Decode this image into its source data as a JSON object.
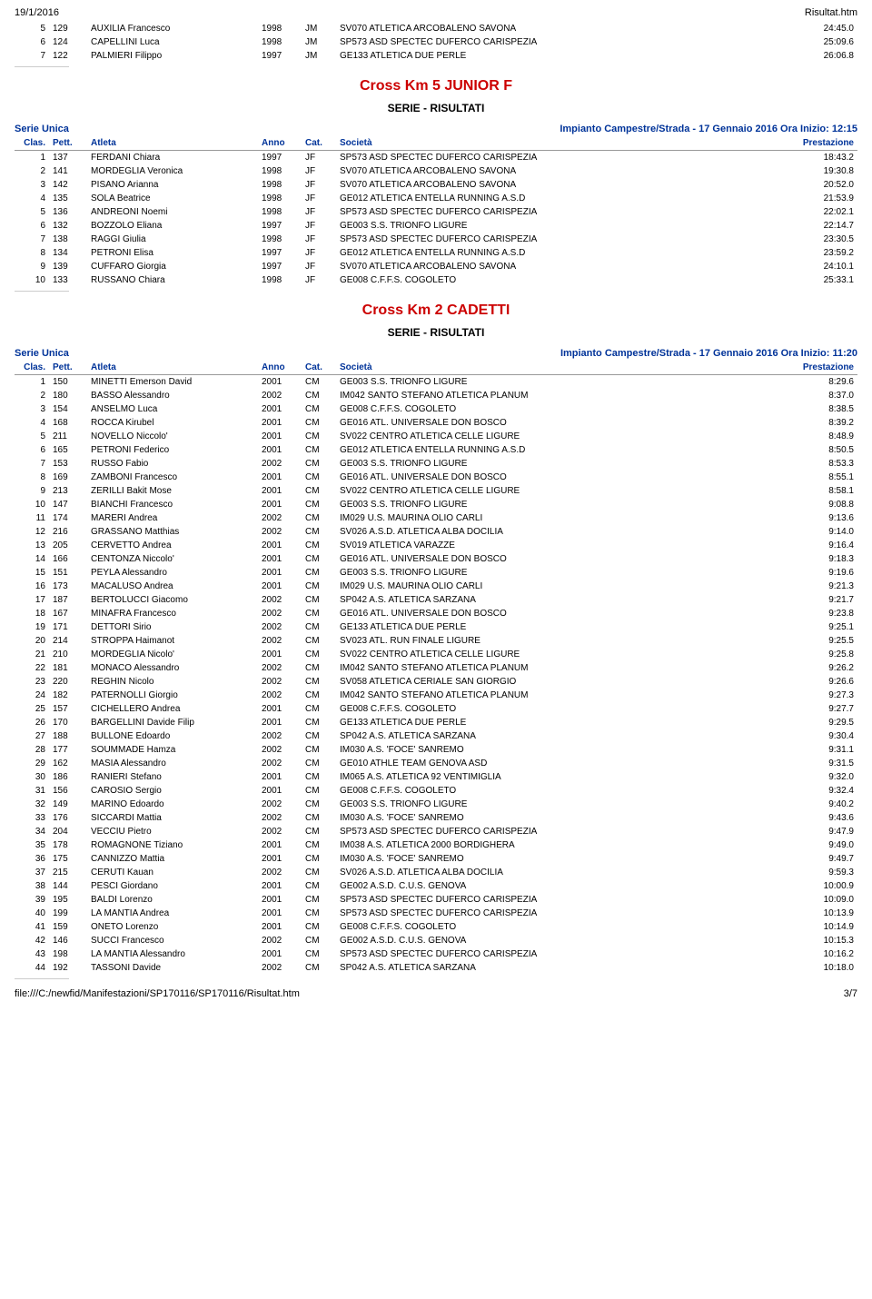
{
  "header": {
    "date": "19/1/2016",
    "file": "Risultat.htm"
  },
  "footer": {
    "path": "file:///C:/newfid/Manifestazioni/SP170116/SP170116/Risultat.htm",
    "page": "3/7"
  },
  "continuation_rows": [
    {
      "clas": "5",
      "pett": "129",
      "atleta": "AUXILIA Francesco",
      "anno": "1998",
      "cat": "JM",
      "soc": "SV070 ATLETICA ARCOBALENO SAVONA",
      "prest": "24:45.0"
    },
    {
      "clas": "6",
      "pett": "124",
      "atleta": "CAPELLINI Luca",
      "anno": "1998",
      "cat": "JM",
      "soc": "SP573 ASD SPECTEC DUFERCO CARISPEZIA",
      "prest": "25:09.6"
    },
    {
      "clas": "7",
      "pett": "122",
      "atleta": "PALMIERI Filippo",
      "anno": "1997",
      "cat": "JM",
      "soc": "GE133 ATLETICA DUE PERLE",
      "prest": "26:06.8"
    }
  ],
  "events": [
    {
      "title": "Cross Km 5 JUNIOR F",
      "serie_label": "Serie Unica",
      "impianto": "Impianto Campestre/Strada - 17 Gennaio 2016 Ora Inizio: 12:15",
      "head": {
        "clas": "Clas.",
        "pett": "Pett.",
        "atleta": "Atleta",
        "anno": "Anno",
        "cat": "Cat.",
        "soc": "Società",
        "prest": "Prestazione"
      },
      "rows": [
        {
          "clas": "1",
          "pett": "137",
          "atleta": "FERDANI Chiara",
          "anno": "1997",
          "cat": "JF",
          "soc": "SP573 ASD SPECTEC DUFERCO CARISPEZIA",
          "prest": "18:43.2"
        },
        {
          "clas": "2",
          "pett": "141",
          "atleta": "MORDEGLIA Veronica",
          "anno": "1998",
          "cat": "JF",
          "soc": "SV070 ATLETICA ARCOBALENO SAVONA",
          "prest": "19:30.8"
        },
        {
          "clas": "3",
          "pett": "142",
          "atleta": "PISANO Arianna",
          "anno": "1998",
          "cat": "JF",
          "soc": "SV070 ATLETICA ARCOBALENO SAVONA",
          "prest": "20:52.0"
        },
        {
          "clas": "4",
          "pett": "135",
          "atleta": "SOLA Beatrice",
          "anno": "1998",
          "cat": "JF",
          "soc": "GE012 ATLETICA ENTELLA RUNNING A.S.D",
          "prest": "21:53.9"
        },
        {
          "clas": "5",
          "pett": "136",
          "atleta": "ANDREONI Noemi",
          "anno": "1998",
          "cat": "JF",
          "soc": "SP573 ASD SPECTEC DUFERCO CARISPEZIA",
          "prest": "22:02.1"
        },
        {
          "clas": "6",
          "pett": "132",
          "atleta": "BOZZOLO Eliana",
          "anno": "1997",
          "cat": "JF",
          "soc": "GE003 S.S. TRIONFO LIGURE",
          "prest": "22:14.7"
        },
        {
          "clas": "7",
          "pett": "138",
          "atleta": "RAGGI Giulia",
          "anno": "1998",
          "cat": "JF",
          "soc": "SP573 ASD SPECTEC DUFERCO CARISPEZIA",
          "prest": "23:30.5"
        },
        {
          "clas": "8",
          "pett": "134",
          "atleta": "PETRONI Elisa",
          "anno": "1997",
          "cat": "JF",
          "soc": "GE012 ATLETICA ENTELLA RUNNING A.S.D",
          "prest": "23:59.2"
        },
        {
          "clas": "9",
          "pett": "139",
          "atleta": "CUFFARO Giorgia",
          "anno": "1997",
          "cat": "JF",
          "soc": "SV070 ATLETICA ARCOBALENO SAVONA",
          "prest": "24:10.1"
        },
        {
          "clas": "10",
          "pett": "133",
          "atleta": "RUSSANO Chiara",
          "anno": "1998",
          "cat": "JF",
          "soc": "GE008 C.F.F.S. COGOLETO",
          "prest": "25:33.1"
        }
      ]
    },
    {
      "title": "Cross Km 2 CADETTI",
      "serie_label": "Serie Unica",
      "impianto": "Impianto Campestre/Strada - 17 Gennaio 2016 Ora Inizio: 11:20",
      "head": {
        "clas": "Clas.",
        "pett": "Pett.",
        "atleta": "Atleta",
        "anno": "Anno",
        "cat": "Cat.",
        "soc": "Società",
        "prest": "Prestazione"
      },
      "rows": [
        {
          "clas": "1",
          "pett": "150",
          "atleta": "MINETTI Emerson David",
          "anno": "2001",
          "cat": "CM",
          "soc": "GE003 S.S. TRIONFO LIGURE",
          "prest": "8:29.6"
        },
        {
          "clas": "2",
          "pett": "180",
          "atleta": "BASSO Alessandro",
          "anno": "2002",
          "cat": "CM",
          "soc": "IM042 SANTO STEFANO ATLETICA PLANUM",
          "prest": "8:37.0"
        },
        {
          "clas": "3",
          "pett": "154",
          "atleta": "ANSELMO Luca",
          "anno": "2001",
          "cat": "CM",
          "soc": "GE008 C.F.F.S. COGOLETO",
          "prest": "8:38.5"
        },
        {
          "clas": "4",
          "pett": "168",
          "atleta": "ROCCA Kirubel",
          "anno": "2001",
          "cat": "CM",
          "soc": "GE016 ATL. UNIVERSALE DON BOSCO",
          "prest": "8:39.2"
        },
        {
          "clas": "5",
          "pett": "211",
          "atleta": "NOVELLO Niccolo'",
          "anno": "2001",
          "cat": "CM",
          "soc": "SV022 CENTRO ATLETICA CELLE LIGURE",
          "prest": "8:48.9"
        },
        {
          "clas": "6",
          "pett": "165",
          "atleta": "PETRONI Federico",
          "anno": "2001",
          "cat": "CM",
          "soc": "GE012 ATLETICA ENTELLA RUNNING A.S.D",
          "prest": "8:50.5"
        },
        {
          "clas": "7",
          "pett": "153",
          "atleta": "RUSSO Fabio",
          "anno": "2002",
          "cat": "CM",
          "soc": "GE003 S.S. TRIONFO LIGURE",
          "prest": "8:53.3"
        },
        {
          "clas": "8",
          "pett": "169",
          "atleta": "ZAMBONI Francesco",
          "anno": "2001",
          "cat": "CM",
          "soc": "GE016 ATL. UNIVERSALE DON BOSCO",
          "prest": "8:55.1"
        },
        {
          "clas": "9",
          "pett": "213",
          "atleta": "ZERILLI Bakit Mose",
          "anno": "2001",
          "cat": "CM",
          "soc": "SV022 CENTRO ATLETICA CELLE LIGURE",
          "prest": "8:58.1"
        },
        {
          "clas": "10",
          "pett": "147",
          "atleta": "BIANCHI Francesco",
          "anno": "2001",
          "cat": "CM",
          "soc": "GE003 S.S. TRIONFO LIGURE",
          "prest": "9:08.8"
        },
        {
          "clas": "11",
          "pett": "174",
          "atleta": "MARERI Andrea",
          "anno": "2002",
          "cat": "CM",
          "soc": "IM029 U.S. MAURINA OLIO CARLI",
          "prest": "9:13.6"
        },
        {
          "clas": "12",
          "pett": "216",
          "atleta": "GRASSANO Matthias",
          "anno": "2002",
          "cat": "CM",
          "soc": "SV026 A.S.D. ATLETICA ALBA DOCILIA",
          "prest": "9:14.0"
        },
        {
          "clas": "13",
          "pett": "205",
          "atleta": "CERVETTO Andrea",
          "anno": "2001",
          "cat": "CM",
          "soc": "SV019 ATLETICA VARAZZE",
          "prest": "9:16.4"
        },
        {
          "clas": "14",
          "pett": "166",
          "atleta": "CENTONZA Niccolo'",
          "anno": "2001",
          "cat": "CM",
          "soc": "GE016 ATL. UNIVERSALE DON BOSCO",
          "prest": "9:18.3"
        },
        {
          "clas": "15",
          "pett": "151",
          "atleta": "PEYLA Alessandro",
          "anno": "2001",
          "cat": "CM",
          "soc": "GE003 S.S. TRIONFO LIGURE",
          "prest": "9:19.6"
        },
        {
          "clas": "16",
          "pett": "173",
          "atleta": "MACALUSO Andrea",
          "anno": "2001",
          "cat": "CM",
          "soc": "IM029 U.S. MAURINA OLIO CARLI",
          "prest": "9:21.3"
        },
        {
          "clas": "17",
          "pett": "187",
          "atleta": "BERTOLUCCI Giacomo",
          "anno": "2002",
          "cat": "CM",
          "soc": "SP042 A.S. ATLETICA SARZANA",
          "prest": "9:21.7"
        },
        {
          "clas": "18",
          "pett": "167",
          "atleta": "MINAFRA Francesco",
          "anno": "2002",
          "cat": "CM",
          "soc": "GE016 ATL. UNIVERSALE DON BOSCO",
          "prest": "9:23.8"
        },
        {
          "clas": "19",
          "pett": "171",
          "atleta": "DETTORI Sirio",
          "anno": "2002",
          "cat": "CM",
          "soc": "GE133 ATLETICA DUE PERLE",
          "prest": "9:25.1"
        },
        {
          "clas": "20",
          "pett": "214",
          "atleta": "STROPPA Haimanot",
          "anno": "2002",
          "cat": "CM",
          "soc": "SV023 ATL. RUN FINALE LIGURE",
          "prest": "9:25.5"
        },
        {
          "clas": "21",
          "pett": "210",
          "atleta": "MORDEGLIA Nicolo'",
          "anno": "2001",
          "cat": "CM",
          "soc": "SV022 CENTRO ATLETICA CELLE LIGURE",
          "prest": "9:25.8"
        },
        {
          "clas": "22",
          "pett": "181",
          "atleta": "MONACO Alessandro",
          "anno": "2002",
          "cat": "CM",
          "soc": "IM042 SANTO STEFANO ATLETICA PLANUM",
          "prest": "9:26.2"
        },
        {
          "clas": "23",
          "pett": "220",
          "atleta": "REGHIN Nicolo",
          "anno": "2002",
          "cat": "CM",
          "soc": "SV058 ATLETICA CERIALE SAN GIORGIO",
          "prest": "9:26.6"
        },
        {
          "clas": "24",
          "pett": "182",
          "atleta": "PATERNOLLI Giorgio",
          "anno": "2002",
          "cat": "CM",
          "soc": "IM042 SANTO STEFANO ATLETICA PLANUM",
          "prest": "9:27.3"
        },
        {
          "clas": "25",
          "pett": "157",
          "atleta": "CICHELLERO Andrea",
          "anno": "2001",
          "cat": "CM",
          "soc": "GE008 C.F.F.S. COGOLETO",
          "prest": "9:27.7"
        },
        {
          "clas": "26",
          "pett": "170",
          "atleta": "BARGELLINI Davide Filip",
          "anno": "2001",
          "cat": "CM",
          "soc": "GE133 ATLETICA DUE PERLE",
          "prest": "9:29.5"
        },
        {
          "clas": "27",
          "pett": "188",
          "atleta": "BULLONE Edoardo",
          "anno": "2002",
          "cat": "CM",
          "soc": "SP042 A.S. ATLETICA SARZANA",
          "prest": "9:30.4"
        },
        {
          "clas": "28",
          "pett": "177",
          "atleta": "SOUMMADE Hamza",
          "anno": "2002",
          "cat": "CM",
          "soc": "IM030 A.S. 'FOCE' SANREMO",
          "prest": "9:31.1"
        },
        {
          "clas": "29",
          "pett": "162",
          "atleta": "MASIA Alessandro",
          "anno": "2002",
          "cat": "CM",
          "soc": "GE010 ATHLE TEAM GENOVA ASD",
          "prest": "9:31.5"
        },
        {
          "clas": "30",
          "pett": "186",
          "atleta": "RANIERI Stefano",
          "anno": "2001",
          "cat": "CM",
          "soc": "IM065 A.S. ATLETICA 92 VENTIMIGLIA",
          "prest": "9:32.0"
        },
        {
          "clas": "31",
          "pett": "156",
          "atleta": "CAROSIO Sergio",
          "anno": "2001",
          "cat": "CM",
          "soc": "GE008 C.F.F.S. COGOLETO",
          "prest": "9:32.4"
        },
        {
          "clas": "32",
          "pett": "149",
          "atleta": "MARINO Edoardo",
          "anno": "2002",
          "cat": "CM",
          "soc": "GE003 S.S. TRIONFO LIGURE",
          "prest": "9:40.2"
        },
        {
          "clas": "33",
          "pett": "176",
          "atleta": "SICCARDI Mattia",
          "anno": "2002",
          "cat": "CM",
          "soc": "IM030 A.S. 'FOCE' SANREMO",
          "prest": "9:43.6"
        },
        {
          "clas": "34",
          "pett": "204",
          "atleta": "VECCIU Pietro",
          "anno": "2002",
          "cat": "CM",
          "soc": "SP573 ASD SPECTEC DUFERCO CARISPEZIA",
          "prest": "9:47.9"
        },
        {
          "clas": "35",
          "pett": "178",
          "atleta": "ROMAGNONE Tiziano",
          "anno": "2001",
          "cat": "CM",
          "soc": "IM038 A.S. ATLETICA 2000 BORDIGHERA",
          "prest": "9:49.0"
        },
        {
          "clas": "36",
          "pett": "175",
          "atleta": "CANNIZZO Mattia",
          "anno": "2001",
          "cat": "CM",
          "soc": "IM030 A.S. 'FOCE' SANREMO",
          "prest": "9:49.7"
        },
        {
          "clas": "37",
          "pett": "215",
          "atleta": "CERUTI Kauan",
          "anno": "2002",
          "cat": "CM",
          "soc": "SV026 A.S.D. ATLETICA ALBA DOCILIA",
          "prest": "9:59.3"
        },
        {
          "clas": "38",
          "pett": "144",
          "atleta": "PESCI Giordano",
          "anno": "2001",
          "cat": "CM",
          "soc": "GE002 A.S.D. C.U.S. GENOVA",
          "prest": "10:00.9"
        },
        {
          "clas": "39",
          "pett": "195",
          "atleta": "BALDI Lorenzo",
          "anno": "2001",
          "cat": "CM",
          "soc": "SP573 ASD SPECTEC DUFERCO CARISPEZIA",
          "prest": "10:09.0"
        },
        {
          "clas": "40",
          "pett": "199",
          "atleta": "LA MANTIA Andrea",
          "anno": "2001",
          "cat": "CM",
          "soc": "SP573 ASD SPECTEC DUFERCO CARISPEZIA",
          "prest": "10:13.9"
        },
        {
          "clas": "41",
          "pett": "159",
          "atleta": "ONETO Lorenzo",
          "anno": "2001",
          "cat": "CM",
          "soc": "GE008 C.F.F.S. COGOLETO",
          "prest": "10:14.9"
        },
        {
          "clas": "42",
          "pett": "146",
          "atleta": "SUCCI Francesco",
          "anno": "2002",
          "cat": "CM",
          "soc": "GE002 A.S.D. C.U.S. GENOVA",
          "prest": "10:15.3"
        },
        {
          "clas": "43",
          "pett": "198",
          "atleta": "LA MANTIA Alessandro",
          "anno": "2001",
          "cat": "CM",
          "soc": "SP573 ASD SPECTEC DUFERCO CARISPEZIA",
          "prest": "10:16.2"
        },
        {
          "clas": "44",
          "pett": "192",
          "atleta": "TASSONI Davide",
          "anno": "2002",
          "cat": "CM",
          "soc": "SP042 A.S. ATLETICA SARZANA",
          "prest": "10:18.0"
        }
      ]
    }
  ]
}
